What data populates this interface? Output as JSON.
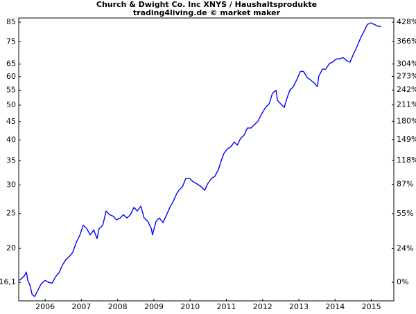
{
  "chart_data": {
    "type": "line",
    "title": "Church & Dwight Co. Inc XNYS / Haushaltsprodukte",
    "subtitle": "trading4living.de © market maker",
    "color": "#0000ff",
    "ylog": true,
    "xlim": [
      2005.27,
      2015.62
    ],
    "xticks": [
      2006,
      2007,
      2008,
      2009,
      2010,
      2011,
      2012,
      2013,
      2014,
      2015
    ],
    "ylim": [
      14.3,
      87.3
    ],
    "yticks": [
      85,
      75,
      65,
      60,
      55,
      50,
      45,
      40,
      35,
      30,
      25,
      20,
      {
        "value": 16.1,
        "label": "16,1"
      }
    ],
    "y2lim": [
      -11.2,
      442.2
    ],
    "y2ticks": [
      {
        "value": 428,
        "label": "428%"
      },
      {
        "value": 366,
        "label": "366%"
      },
      {
        "value": 304,
        "label": "304%"
      },
      {
        "value": 273,
        "label": "273%"
      },
      {
        "value": 242,
        "label": "242%"
      },
      {
        "value": 211,
        "label": "211%"
      },
      {
        "value": 180,
        "label": "180%"
      },
      {
        "value": 149,
        "label": "149%"
      },
      {
        "value": 118,
        "label": "118%"
      },
      {
        "value": 87,
        "label": "87%"
      },
      {
        "value": 55,
        "label": "55%"
      },
      {
        "value": 24,
        "label": "24%"
      },
      {
        "value": 0,
        "label": "0%"
      }
    ],
    "x": [
      2005.29,
      2005.43,
      2005.48,
      2005.52,
      2005.58,
      2005.64,
      2005.71,
      2005.81,
      2005.9,
      2006.0,
      2006.1,
      2006.19,
      2006.29,
      2006.38,
      2006.48,
      2006.57,
      2006.67,
      2006.76,
      2006.86,
      2006.96,
      2007.05,
      2007.15,
      2007.24,
      2007.34,
      2007.43,
      2007.49,
      2007.59,
      2007.68,
      2007.78,
      2007.87,
      2007.97,
      2008.07,
      2008.16,
      2008.26,
      2008.35,
      2008.45,
      2008.54,
      2008.64,
      2008.73,
      2008.83,
      2008.93,
      2008.96,
      2009.06,
      2009.15,
      2009.25,
      2009.35,
      2009.44,
      2009.54,
      2009.63,
      2009.69,
      2009.79,
      2009.88,
      2009.98,
      2010.07,
      2010.17,
      2010.3,
      2010.4,
      2010.49,
      2010.59,
      2010.68,
      2010.78,
      2010.84,
      2010.93,
      2011.03,
      2011.12,
      2011.22,
      2011.3,
      2011.39,
      2011.49,
      2011.58,
      2011.68,
      2011.77,
      2011.87,
      2011.97,
      2012.08,
      2012.18,
      2012.27,
      2012.37,
      2012.41,
      2012.5,
      2012.6,
      2012.65,
      2012.75,
      2012.85,
      2012.94,
      2013.04,
      2013.13,
      2013.23,
      2013.32,
      2013.42,
      2013.51,
      2013.55,
      2013.65,
      2013.74,
      2013.84,
      2013.93,
      2014.03,
      2014.13,
      2014.22,
      2014.32,
      2014.41,
      2014.51,
      2014.6,
      2014.7,
      2014.8,
      2014.89,
      2014.99,
      2015.08,
      2015.18,
      2015.27
    ],
    "values": [
      16.3,
      16.8,
      17.2,
      16.3,
      15.8,
      14.9,
      14.7,
      15.4,
      16.0,
      16.3,
      16.1,
      16.0,
      16.7,
      17.1,
      18.0,
      18.6,
      19.0,
      19.5,
      20.8,
      21.8,
      23.2,
      22.7,
      21.8,
      22.5,
      21.3,
      22.7,
      23.2,
      25.4,
      24.8,
      24.6,
      24.0,
      24.3,
      24.8,
      24.3,
      24.8,
      26.0,
      25.4,
      26.2,
      24.3,
      23.8,
      22.7,
      21.8,
      23.8,
      24.3,
      23.6,
      24.8,
      26.0,
      27.1,
      28.4,
      29.0,
      29.7,
      31.3,
      31.3,
      30.7,
      30.3,
      29.7,
      29.0,
      30.3,
      31.3,
      31.7,
      33.1,
      34.6,
      36.7,
      37.8,
      38.3,
      39.5,
      38.7,
      40.4,
      41.3,
      43.2,
      43.2,
      44.1,
      45.1,
      47.2,
      49.3,
      50.4,
      53.9,
      55.0,
      51.5,
      50.4,
      49.3,
      51.5,
      55.0,
      56.3,
      58.8,
      62.0,
      62.0,
      59.6,
      58.8,
      57.6,
      56.3,
      60.2,
      62.9,
      62.9,
      65.2,
      65.8,
      67.2,
      67.2,
      67.8,
      66.4,
      65.8,
      69.4,
      72.5,
      76.7,
      80.2,
      83.8,
      84.6,
      83.8,
      82.8,
      82.8
    ]
  }
}
